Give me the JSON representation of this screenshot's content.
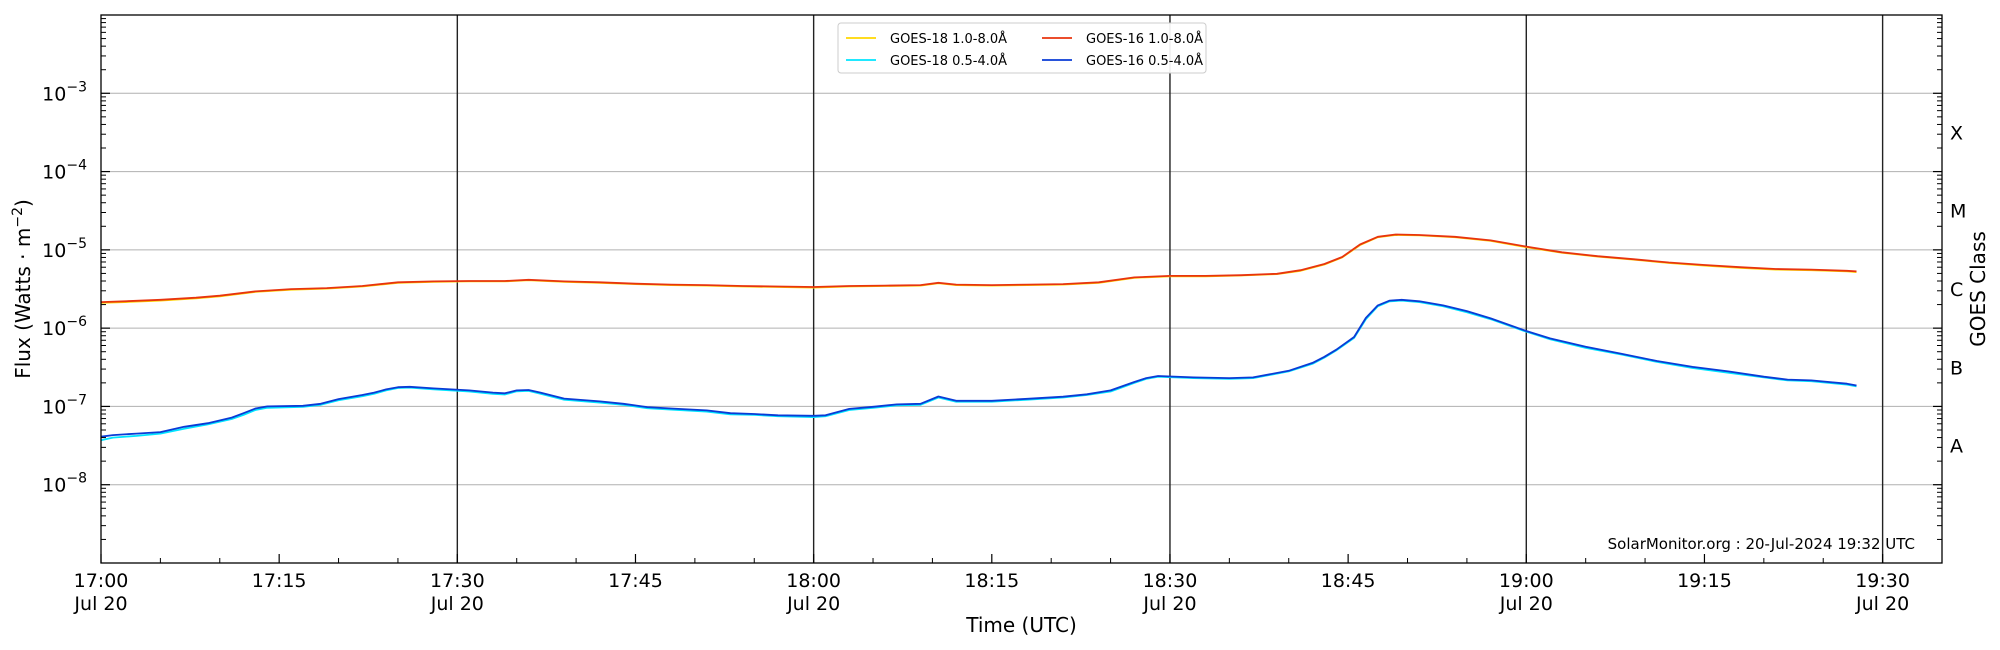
{
  "chart_data": {
    "type": "line",
    "xlabel": "Time (UTC)",
    "ylabel_main": "Flux (Watts · m",
    "ylabel_sup": "−2",
    "ylabel_close": ")",
    "right_label": "GOES Class",
    "credit": "SolarMonitor.org : 20-Jul-2024 19:32 UTC",
    "y_scale": "log",
    "ylim": [
      1e-09,
      0.01
    ],
    "xlim_minutes": [
      0,
      155
    ],
    "grid": "horizontal",
    "legend_position": "top-center",
    "x_ticks": [
      {
        "m": 0,
        "line1": "17:00",
        "line2": "Jul 20",
        "major": true
      },
      {
        "m": 15,
        "line1": "17:15",
        "line2": "",
        "major": false
      },
      {
        "m": 30,
        "line1": "17:30",
        "line2": "Jul 20",
        "major": true
      },
      {
        "m": 45,
        "line1": "17:45",
        "line2": "",
        "major": false
      },
      {
        "m": 60,
        "line1": "18:00",
        "line2": "Jul 20",
        "major": true
      },
      {
        "m": 75,
        "line1": "18:15",
        "line2": "",
        "major": false
      },
      {
        "m": 90,
        "line1": "18:30",
        "line2": "Jul 20",
        "major": true
      },
      {
        "m": 105,
        "line1": "18:45",
        "line2": "",
        "major": false
      },
      {
        "m": 120,
        "line1": "19:00",
        "line2": "Jul 20",
        "major": true
      },
      {
        "m": 135,
        "line1": "19:15",
        "line2": "",
        "major": false
      },
      {
        "m": 150,
        "line1": "19:30",
        "line2": "Jul 20",
        "major": true
      }
    ],
    "y_ticks": [
      {
        "exp": -8,
        "base": "10",
        "sup": "−8"
      },
      {
        "exp": -7,
        "base": "10",
        "sup": "−7"
      },
      {
        "exp": -6,
        "base": "10",
        "sup": "−6"
      },
      {
        "exp": -5,
        "base": "10",
        "sup": "−5"
      },
      {
        "exp": -4,
        "base": "10",
        "sup": "−4"
      },
      {
        "exp": -3,
        "base": "10",
        "sup": "−3"
      }
    ],
    "classes": [
      {
        "label": "A",
        "exp": -7.5
      },
      {
        "label": "B",
        "exp": -6.5
      },
      {
        "label": "C",
        "exp": -5.5
      },
      {
        "label": "M",
        "exp": -4.5
      },
      {
        "label": "X",
        "exp": -3.5
      }
    ],
    "series": [
      {
        "name": "GOES-18 1.0-8.0Å",
        "color": "#FFD700",
        "points": [
          [
            0,
            2.1e-06
          ],
          [
            2,
            2.15e-06
          ],
          [
            5,
            2.25e-06
          ],
          [
            8,
            2.4e-06
          ],
          [
            10,
            2.55e-06
          ],
          [
            13,
            2.9e-06
          ],
          [
            16,
            3.1e-06
          ],
          [
            19,
            3.2e-06
          ],
          [
            22,
            3.4e-06
          ],
          [
            25,
            3.8e-06
          ],
          [
            28,
            3.9e-06
          ],
          [
            31,
            3.95e-06
          ],
          [
            34,
            3.95e-06
          ],
          [
            36,
            4.1e-06
          ],
          [
            39,
            3.9e-06
          ],
          [
            42,
            3.8e-06
          ],
          [
            45,
            3.65e-06
          ],
          [
            48,
            3.55e-06
          ],
          [
            51,
            3.5e-06
          ],
          [
            54,
            3.4e-06
          ],
          [
            57,
            3.35e-06
          ],
          [
            60,
            3.3e-06
          ],
          [
            63,
            3.4e-06
          ],
          [
            66,
            3.45e-06
          ],
          [
            69,
            3.5e-06
          ],
          [
            70.5,
            3.75e-06
          ],
          [
            72,
            3.55e-06
          ],
          [
            75,
            3.5e-06
          ],
          [
            78,
            3.55e-06
          ],
          [
            81,
            3.6e-06
          ],
          [
            84,
            3.8e-06
          ],
          [
            87,
            4.4e-06
          ],
          [
            90,
            4.6e-06
          ],
          [
            93,
            4.6e-06
          ],
          [
            96,
            4.7e-06
          ],
          [
            99,
            4.9e-06
          ],
          [
            101,
            5.4e-06
          ],
          [
            103,
            6.5e-06
          ],
          [
            104.5,
            8e-06
          ],
          [
            106,
            1.15e-05
          ],
          [
            107.5,
            1.45e-05
          ],
          [
            109,
            1.55e-05
          ],
          [
            111,
            1.53e-05
          ],
          [
            114,
            1.45e-05
          ],
          [
            117,
            1.3e-05
          ],
          [
            120,
            1.08e-05
          ],
          [
            123,
            9.2e-06
          ],
          [
            126,
            8.2e-06
          ],
          [
            129,
            7.5e-06
          ],
          [
            132,
            6.8e-06
          ],
          [
            135,
            6.3e-06
          ],
          [
            138,
            5.9e-06
          ],
          [
            141,
            5.6e-06
          ],
          [
            144,
            5.5e-06
          ],
          [
            147,
            5.3e-06
          ],
          [
            147.8,
            5.2e-06
          ]
        ]
      },
      {
        "name": "GOES-16 1.0-8.0Å",
        "color": "#E8340E",
        "points": [
          [
            0,
            2.15e-06
          ],
          [
            2,
            2.2e-06
          ],
          [
            5,
            2.3e-06
          ],
          [
            8,
            2.45e-06
          ],
          [
            10,
            2.6e-06
          ],
          [
            13,
            2.95e-06
          ],
          [
            16,
            3.15e-06
          ],
          [
            19,
            3.25e-06
          ],
          [
            22,
            3.45e-06
          ],
          [
            25,
            3.85e-06
          ],
          [
            28,
            3.95e-06
          ],
          [
            31,
            4e-06
          ],
          [
            34,
            4e-06
          ],
          [
            36,
            4.15e-06
          ],
          [
            39,
            3.95e-06
          ],
          [
            42,
            3.85e-06
          ],
          [
            45,
            3.7e-06
          ],
          [
            48,
            3.6e-06
          ],
          [
            51,
            3.55e-06
          ],
          [
            54,
            3.45e-06
          ],
          [
            57,
            3.4e-06
          ],
          [
            60,
            3.35e-06
          ],
          [
            63,
            3.45e-06
          ],
          [
            66,
            3.5e-06
          ],
          [
            69,
            3.55e-06
          ],
          [
            70.5,
            3.8e-06
          ],
          [
            72,
            3.6e-06
          ],
          [
            75,
            3.55e-06
          ],
          [
            78,
            3.6e-06
          ],
          [
            81,
            3.65e-06
          ],
          [
            84,
            3.85e-06
          ],
          [
            87,
            4.45e-06
          ],
          [
            90,
            4.65e-06
          ],
          [
            93,
            4.65e-06
          ],
          [
            96,
            4.75e-06
          ],
          [
            99,
            4.95e-06
          ],
          [
            101,
            5.5e-06
          ],
          [
            103,
            6.6e-06
          ],
          [
            104.5,
            8.1e-06
          ],
          [
            106,
            1.17e-05
          ],
          [
            107.5,
            1.47e-05
          ],
          [
            109,
            1.57e-05
          ],
          [
            111,
            1.55e-05
          ],
          [
            114,
            1.47e-05
          ],
          [
            117,
            1.32e-05
          ],
          [
            120,
            1.1e-05
          ],
          [
            123,
            9.3e-06
          ],
          [
            126,
            8.3e-06
          ],
          [
            129,
            7.6e-06
          ],
          [
            132,
            6.9e-06
          ],
          [
            135,
            6.4e-06
          ],
          [
            138,
            6e-06
          ],
          [
            141,
            5.7e-06
          ],
          [
            144,
            5.6e-06
          ],
          [
            147,
            5.4e-06
          ],
          [
            147.8,
            5.3e-06
          ]
        ]
      },
      {
        "name": "GOES-18 0.5-4.0Å",
        "color": "#00E5FF",
        "points": [
          [
            0,
            3.7e-08
          ],
          [
            1,
            4e-08
          ],
          [
            3,
            4.2e-08
          ],
          [
            5,
            4.5e-08
          ],
          [
            7,
            5.2e-08
          ],
          [
            9,
            5.9e-08
          ],
          [
            11,
            6.9e-08
          ],
          [
            12,
            7.8e-08
          ],
          [
            13,
            9e-08
          ],
          [
            14,
            9.6e-08
          ],
          [
            17,
            9.9e-08
          ],
          [
            18.5,
            1.05e-07
          ],
          [
            20,
            1.2e-07
          ],
          [
            22,
            1.35e-07
          ],
          [
            23,
            1.45e-07
          ],
          [
            24,
            1.6e-07
          ],
          [
            25,
            1.72e-07
          ],
          [
            26,
            1.74e-07
          ],
          [
            28,
            1.65e-07
          ],
          [
            31,
            1.55e-07
          ],
          [
            33,
            1.45e-07
          ],
          [
            34,
            1.42e-07
          ],
          [
            35,
            1.56e-07
          ],
          [
            36,
            1.58e-07
          ],
          [
            37,
            1.45e-07
          ],
          [
            39,
            1.22e-07
          ],
          [
            42,
            1.12e-07
          ],
          [
            44,
            1.05e-07
          ],
          [
            46,
            9.5e-08
          ],
          [
            48,
            9.1e-08
          ],
          [
            51,
            8.6e-08
          ],
          [
            53,
            7.9e-08
          ],
          [
            55,
            7.8e-08
          ],
          [
            57,
            7.5e-08
          ],
          [
            60,
            7.3e-08
          ],
          [
            61,
            7.5e-08
          ],
          [
            63,
            9e-08
          ],
          [
            65,
            9.6e-08
          ],
          [
            67,
            1.03e-07
          ],
          [
            69,
            1.05e-07
          ],
          [
            70.5,
            1.3e-07
          ],
          [
            72,
            1.15e-07
          ],
          [
            75,
            1.15e-07
          ],
          [
            78,
            1.22e-07
          ],
          [
            81,
            1.3e-07
          ],
          [
            83,
            1.4e-07
          ],
          [
            85,
            1.55e-07
          ],
          [
            87,
            2e-07
          ],
          [
            88,
            2.25e-07
          ],
          [
            89,
            2.4e-07
          ],
          [
            92,
            2.3e-07
          ],
          [
            95,
            2.25e-07
          ],
          [
            97,
            2.3e-07
          ],
          [
            100,
            2.8e-07
          ],
          [
            102,
            3.5e-07
          ],
          [
            103,
            4.2e-07
          ],
          [
            104,
            5.2e-07
          ],
          [
            105.5,
            7.5e-07
          ],
          [
            106.5,
            1.3e-06
          ],
          [
            107.5,
            1.9e-06
          ],
          [
            108.5,
            2.2e-06
          ],
          [
            109.5,
            2.25e-06
          ],
          [
            111,
            2.15e-06
          ],
          [
            113,
            1.9e-06
          ],
          [
            115,
            1.6e-06
          ],
          [
            117,
            1.3e-06
          ],
          [
            120,
            9e-07
          ],
          [
            122,
            7.2e-07
          ],
          [
            125,
            5.6e-07
          ],
          [
            128,
            4.6e-07
          ],
          [
            131,
            3.7e-07
          ],
          [
            134,
            3.1e-07
          ],
          [
            137,
            2.7e-07
          ],
          [
            140,
            2.35e-07
          ],
          [
            142,
            2.15e-07
          ],
          [
            144,
            2.1e-07
          ],
          [
            147,
            1.9e-07
          ],
          [
            147.8,
            1.8e-07
          ]
        ]
      },
      {
        "name": "GOES-16 0.5-4.0Å",
        "color": "#0A3BD6",
        "points": [
          [
            0,
            4.1e-08
          ],
          [
            1,
            4.3e-08
          ],
          [
            3,
            4.5e-08
          ],
          [
            5,
            4.7e-08
          ],
          [
            7,
            5.5e-08
          ],
          [
            9,
            6.1e-08
          ],
          [
            11,
            7.2e-08
          ],
          [
            12,
            8.2e-08
          ],
          [
            13,
            9.4e-08
          ],
          [
            14,
            1e-07
          ],
          [
            17,
            1.02e-07
          ],
          [
            18.5,
            1.08e-07
          ],
          [
            20,
            1.24e-07
          ],
          [
            22,
            1.4e-07
          ],
          [
            23,
            1.5e-07
          ],
          [
            24,
            1.65e-07
          ],
          [
            25,
            1.76e-07
          ],
          [
            26,
            1.78e-07
          ],
          [
            28,
            1.7e-07
          ],
          [
            31,
            1.6e-07
          ],
          [
            33,
            1.5e-07
          ],
          [
            34,
            1.47e-07
          ],
          [
            35,
            1.6e-07
          ],
          [
            36,
            1.62e-07
          ],
          [
            37,
            1.5e-07
          ],
          [
            39,
            1.26e-07
          ],
          [
            42,
            1.16e-07
          ],
          [
            44,
            1.08e-07
          ],
          [
            46,
            9.8e-08
          ],
          [
            48,
            9.4e-08
          ],
          [
            51,
            8.9e-08
          ],
          [
            53,
            8.2e-08
          ],
          [
            55,
            8e-08
          ],
          [
            57,
            7.7e-08
          ],
          [
            60,
            7.6e-08
          ],
          [
            61,
            7.7e-08
          ],
          [
            63,
            9.3e-08
          ],
          [
            65,
            9.9e-08
          ],
          [
            67,
            1.06e-07
          ],
          [
            69,
            1.08e-07
          ],
          [
            70.5,
            1.34e-07
          ],
          [
            72,
            1.18e-07
          ],
          [
            75,
            1.18e-07
          ],
          [
            78,
            1.25e-07
          ],
          [
            81,
            1.33e-07
          ],
          [
            83,
            1.43e-07
          ],
          [
            85,
            1.6e-07
          ],
          [
            87,
            2.05e-07
          ],
          [
            88,
            2.3e-07
          ],
          [
            89,
            2.45e-07
          ],
          [
            92,
            2.35e-07
          ],
          [
            95,
            2.3e-07
          ],
          [
            97,
            2.35e-07
          ],
          [
            100,
            2.85e-07
          ],
          [
            102,
            3.6e-07
          ],
          [
            103,
            4.3e-07
          ],
          [
            104,
            5.3e-07
          ],
          [
            105.5,
            7.7e-07
          ],
          [
            106.5,
            1.35e-06
          ],
          [
            107.5,
            1.95e-06
          ],
          [
            108.5,
            2.25e-06
          ],
          [
            109.5,
            2.3e-06
          ],
          [
            111,
            2.2e-06
          ],
          [
            113,
            1.95e-06
          ],
          [
            115,
            1.65e-06
          ],
          [
            117,
            1.33e-06
          ],
          [
            120,
            9.2e-07
          ],
          [
            122,
            7.4e-07
          ],
          [
            125,
            5.8e-07
          ],
          [
            128,
            4.7e-07
          ],
          [
            131,
            3.8e-07
          ],
          [
            134,
            3.2e-07
          ],
          [
            137,
            2.8e-07
          ],
          [
            140,
            2.4e-07
          ],
          [
            142,
            2.2e-07
          ],
          [
            144,
            2.15e-07
          ],
          [
            147,
            1.95e-07
          ],
          [
            147.8,
            1.85e-07
          ]
        ]
      }
    ],
    "legend_order": [
      0,
      2,
      1,
      3
    ]
  }
}
